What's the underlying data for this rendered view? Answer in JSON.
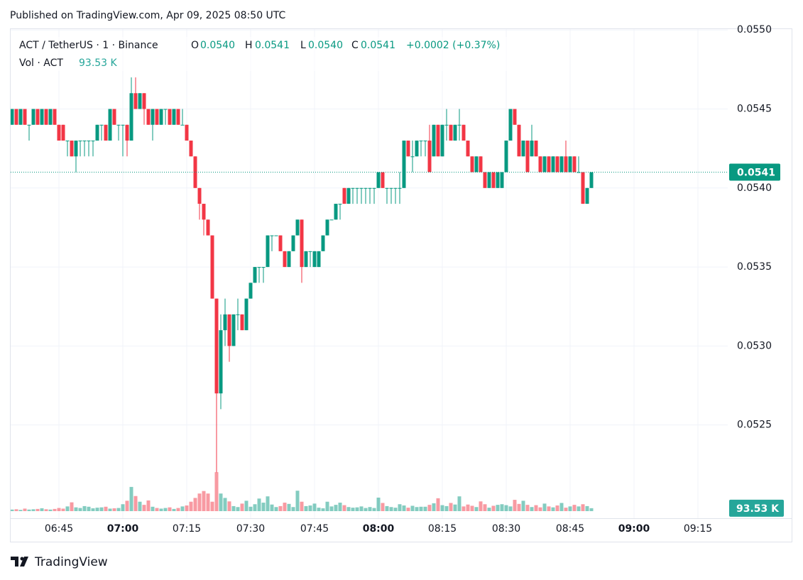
{
  "chart_data": {
    "type": "candlestick",
    "published": "Published on TradingView.com, Apr 09, 2025 08:50 UTC",
    "symbol": "ACT / TetherUS · 1 · Binance",
    "ohlc_letters": [
      "O",
      "H",
      "L",
      "C"
    ],
    "ohlc_labels": [
      "0.0540",
      "0.0541",
      "0.0540",
      "0.0541"
    ],
    "change": "+0.0002 (+0.37%)",
    "volume_title": "Vol · ACT",
    "brand": "TradingView",
    "up_color": "#089981",
    "down_color": "#f23645",
    "grid": true,
    "x": [
      "06:34",
      "06:35",
      "06:36",
      "06:37",
      "06:38",
      "06:39",
      "06:40",
      "06:41",
      "06:42",
      "06:43",
      "06:44",
      "06:45",
      "06:46",
      "06:47",
      "06:48",
      "06:49",
      "06:50",
      "06:51",
      "06:52",
      "06:53",
      "06:54",
      "06:55",
      "06:56",
      "06:57",
      "06:58",
      "06:59",
      "07:00",
      "07:01",
      "07:02",
      "07:03",
      "07:04",
      "07:05",
      "07:06",
      "07:07",
      "07:08",
      "07:09",
      "07:10",
      "07:11",
      "07:12",
      "07:13",
      "07:14",
      "07:15",
      "07:16",
      "07:17",
      "07:18",
      "07:19",
      "07:20",
      "07:21",
      "07:22",
      "07:23",
      "07:24",
      "07:25",
      "07:26",
      "07:27",
      "07:28",
      "07:29",
      "07:30",
      "07:31",
      "07:32",
      "07:33",
      "07:34",
      "07:35",
      "07:36",
      "07:37",
      "07:38",
      "07:39",
      "07:40",
      "07:41",
      "07:42",
      "07:43",
      "07:44",
      "07:45",
      "07:46",
      "07:47",
      "07:48",
      "07:49",
      "07:50",
      "07:51",
      "07:52",
      "07:53",
      "07:54",
      "07:55",
      "07:56",
      "07:57",
      "07:58",
      "07:59",
      "08:00",
      "08:01",
      "08:02",
      "08:03",
      "08:04",
      "08:05",
      "08:06",
      "08:07",
      "08:08",
      "08:09",
      "08:10",
      "08:11",
      "08:12",
      "08:13",
      "08:14",
      "08:15",
      "08:16",
      "08:17",
      "08:18",
      "08:19",
      "08:20",
      "08:21",
      "08:22",
      "08:23",
      "08:24",
      "08:25",
      "08:26",
      "08:27",
      "08:28",
      "08:29",
      "08:30",
      "08:31",
      "08:32",
      "08:33",
      "08:34",
      "08:35",
      "08:36",
      "08:37",
      "08:38",
      "08:39",
      "08:40",
      "08:41",
      "08:42",
      "08:43",
      "08:44",
      "08:45",
      "08:46",
      "08:47",
      "08:48",
      "08:49",
      "08:50"
    ],
    "open": [
      0.0544,
      0.0545,
      0.0544,
      0.0545,
      0.0544,
      0.0544,
      0.0545,
      0.0544,
      0.0545,
      0.0544,
      0.0545,
      0.0544,
      0.0544,
      0.0543,
      0.0543,
      0.0542,
      0.0543,
      0.0543,
      0.0543,
      0.0543,
      0.0543,
      0.0544,
      0.0544,
      0.0543,
      0.0545,
      0.0544,
      0.0544,
      0.0544,
      0.0543,
      0.0546,
      0.0545,
      0.0546,
      0.0545,
      0.0544,
      0.0545,
      0.0544,
      0.0545,
      0.0545,
      0.0544,
      0.0545,
      0.0544,
      0.0544,
      0.0543,
      0.0542,
      0.054,
      0.0539,
      0.0538,
      0.0537,
      0.0533,
      0.0527,
      0.0531,
      0.0532,
      0.053,
      0.0532,
      0.0532,
      0.0531,
      0.0533,
      0.0534,
      0.0535,
      0.0535,
      0.0535,
      0.0537,
      0.0537,
      0.0537,
      0.0536,
      0.0535,
      0.0536,
      0.0537,
      0.0538,
      0.0535,
      0.0536,
      0.0535,
      0.0535,
      0.0536,
      0.0537,
      0.0538,
      0.0538,
      0.0539,
      0.054,
      0.0539,
      0.054,
      0.054,
      0.054,
      0.054,
      0.054,
      0.054,
      0.054,
      0.0541,
      0.054,
      0.054,
      0.054,
      0.054,
      0.054,
      0.0543,
      0.0542,
      0.0542,
      0.0543,
      0.0543,
      0.0543,
      0.0542,
      0.0544,
      0.0542,
      0.0544,
      0.0544,
      0.0543,
      0.0544,
      0.0544,
      0.0543,
      0.0542,
      0.0541,
      0.0542,
      0.0541,
      0.054,
      0.0541,
      0.054,
      0.054,
      0.0541,
      0.0543,
      0.0545,
      0.0544,
      0.0542,
      0.0543,
      0.0542,
      0.0543,
      0.0542,
      0.0541,
      0.0542,
      0.0541,
      0.0542,
      0.0541,
      0.0542,
      0.0541,
      0.0542,
      0.0541,
      0.0541,
      0.0539,
      0.054
    ],
    "high": [
      0.0545,
      0.0545,
      0.0545,
      0.0545,
      0.0544,
      0.0545,
      0.0545,
      0.0545,
      0.0545,
      0.0545,
      0.0545,
      0.0544,
      0.0544,
      0.0543,
      0.0543,
      0.0543,
      0.0543,
      0.0543,
      0.0543,
      0.0543,
      0.0544,
      0.0544,
      0.0544,
      0.0545,
      0.0545,
      0.0544,
      0.0544,
      0.0544,
      0.0547,
      0.0547,
      0.0546,
      0.0546,
      0.0545,
      0.0545,
      0.0545,
      0.0545,
      0.0545,
      0.0545,
      0.0545,
      0.0545,
      0.0545,
      0.0544,
      0.0543,
      0.0542,
      0.054,
      0.0539,
      0.0538,
      0.0537,
      0.0533,
      0.0532,
      0.0533,
      0.0532,
      0.0532,
      0.0533,
      0.0532,
      0.0533,
      0.0534,
      0.0535,
      0.0535,
      0.0535,
      0.0537,
      0.0537,
      0.0537,
      0.0537,
      0.0536,
      0.0536,
      0.0537,
      0.0538,
      0.0538,
      0.0536,
      0.0536,
      0.0536,
      0.0536,
      0.0537,
      0.0538,
      0.0538,
      0.0539,
      0.0539,
      0.054,
      0.054,
      0.054,
      0.054,
      0.054,
      0.054,
      0.054,
      0.054,
      0.0541,
      0.0541,
      0.054,
      0.054,
      0.054,
      0.0541,
      0.0543,
      0.0543,
      0.0543,
      0.0543,
      0.0543,
      0.0543,
      0.0544,
      0.0544,
      0.0544,
      0.0544,
      0.0545,
      0.0544,
      0.0544,
      0.0545,
      0.0544,
      0.0543,
      0.0542,
      0.0542,
      0.0542,
      0.0541,
      0.0541,
      0.0541,
      0.0541,
      0.0541,
      0.0543,
      0.0545,
      0.0545,
      0.0544,
      0.0543,
      0.0543,
      0.0544,
      0.0543,
      0.0542,
      0.0542,
      0.0542,
      0.0542,
      0.0542,
      0.0542,
      0.0543,
      0.0542,
      0.0542,
      0.0542,
      0.0541,
      0.054,
      0.0541
    ],
    "low": [
      0.0544,
      0.0544,
      0.0544,
      0.0544,
      0.0543,
      0.0544,
      0.0544,
      0.0544,
      0.0544,
      0.0544,
      0.0544,
      0.0543,
      0.0543,
      0.0542,
      0.0542,
      0.0541,
      0.0542,
      0.0542,
      0.0542,
      0.0542,
      0.0543,
      0.0543,
      0.0543,
      0.0543,
      0.0544,
      0.0543,
      0.0542,
      0.0542,
      0.0543,
      0.0545,
      0.0545,
      0.0544,
      0.0544,
      0.0543,
      0.0544,
      0.0544,
      0.0544,
      0.0544,
      0.0544,
      0.0544,
      0.0544,
      0.0543,
      0.0542,
      0.054,
      0.0538,
      0.0537,
      0.0537,
      0.0533,
      0.0522,
      0.0526,
      0.053,
      0.0529,
      0.053,
      0.0531,
      0.0531,
      0.0531,
      0.0533,
      0.0534,
      0.0534,
      0.0534,
      0.0535,
      0.0536,
      0.0537,
      0.0536,
      0.0535,
      0.0535,
      0.0536,
      0.0537,
      0.0534,
      0.0535,
      0.0535,
      0.0535,
      0.0535,
      0.0536,
      0.0537,
      0.0538,
      0.0538,
      0.0538,
      0.0539,
      0.0539,
      0.0539,
      0.0539,
      0.0539,
      0.0539,
      0.0539,
      0.0539,
      0.054,
      0.054,
      0.0539,
      0.0539,
      0.0539,
      0.0539,
      0.054,
      0.0542,
      0.0541,
      0.0542,
      0.0542,
      0.0542,
      0.0541,
      0.0542,
      0.0542,
      0.0542,
      0.0543,
      0.0543,
      0.0543,
      0.0543,
      0.0543,
      0.0542,
      0.0541,
      0.0541,
      0.0541,
      0.054,
      0.054,
      0.054,
      0.054,
      0.054,
      0.0541,
      0.0543,
      0.0544,
      0.0542,
      0.0542,
      0.0541,
      0.0542,
      0.0542,
      0.0541,
      0.0541,
      0.0541,
      0.0541,
      0.0541,
      0.0541,
      0.0541,
      0.0541,
      0.0541,
      0.0541,
      0.0539,
      0.0539,
      0.054
    ],
    "close": [
      0.0545,
      0.0544,
      0.0545,
      0.0544,
      0.0544,
      0.0545,
      0.0544,
      0.0545,
      0.0544,
      0.0545,
      0.0544,
      0.0543,
      0.0543,
      0.0543,
      0.0542,
      0.0543,
      0.0543,
      0.0543,
      0.0543,
      0.0543,
      0.0544,
      0.0544,
      0.0543,
      0.0545,
      0.0544,
      0.0544,
      0.0544,
      0.0543,
      0.0546,
      0.0545,
      0.0546,
      0.0545,
      0.0544,
      0.0545,
      0.0544,
      0.0545,
      0.0545,
      0.0544,
      0.0545,
      0.0544,
      0.0544,
      0.0543,
      0.0542,
      0.054,
      0.0539,
      0.0538,
      0.0537,
      0.0533,
      0.0527,
      0.0531,
      0.0532,
      0.053,
      0.0532,
      0.0532,
      0.0531,
      0.0533,
      0.0534,
      0.0535,
      0.0535,
      0.0535,
      0.0537,
      0.0537,
      0.0537,
      0.0536,
      0.0535,
      0.0536,
      0.0537,
      0.0538,
      0.0535,
      0.0536,
      0.0536,
      0.0536,
      0.0536,
      0.0537,
      0.0538,
      0.0538,
      0.0539,
      0.0539,
      0.0539,
      0.054,
      0.054,
      0.054,
      0.054,
      0.054,
      0.054,
      0.054,
      0.0541,
      0.054,
      0.054,
      0.054,
      0.054,
      0.054,
      0.0543,
      0.0542,
      0.0542,
      0.0543,
      0.0543,
      0.0543,
      0.0541,
      0.0544,
      0.0542,
      0.0544,
      0.0544,
      0.0543,
      0.0544,
      0.0544,
      0.0543,
      0.0542,
      0.0541,
      0.0542,
      0.0541,
      0.054,
      0.0541,
      0.054,
      0.0541,
      0.0541,
      0.0543,
      0.0545,
      0.0544,
      0.0542,
      0.0543,
      0.0541,
      0.0543,
      0.0542,
      0.0541,
      0.0542,
      0.0541,
      0.0542,
      0.0541,
      0.0542,
      0.0541,
      0.0542,
      0.0541,
      0.0541,
      0.0539,
      0.054,
      0.0541
    ],
    "volume": [
      50000,
      60000,
      40000,
      80000,
      50000,
      60000,
      70000,
      90000,
      60000,
      50000,
      70000,
      100000,
      80000,
      150000,
      280000,
      120000,
      100000,
      160000,
      140000,
      90000,
      110000,
      120000,
      140000,
      80000,
      90000,
      100000,
      220000,
      330000,
      770000,
      480000,
      300000,
      200000,
      340000,
      140000,
      100000,
      80000,
      100000,
      120000,
      70000,
      100000,
      150000,
      180000,
      300000,
      420000,
      560000,
      640000,
      560000,
      300000,
      1240000,
      560000,
      420000,
      310000,
      160000,
      130000,
      240000,
      330000,
      140000,
      220000,
      400000,
      270000,
      470000,
      210000,
      130000,
      160000,
      270000,
      230000,
      130000,
      650000,
      300000,
      160000,
      180000,
      240000,
      110000,
      90000,
      300000,
      150000,
      200000,
      270000,
      190000,
      130000,
      110000,
      120000,
      150000,
      100000,
      130000,
      100000,
      430000,
      260000,
      160000,
      130000,
      110000,
      220000,
      180000,
      110000,
      170000,
      130000,
      140000,
      140000,
      200000,
      250000,
      410000,
      190000,
      160000,
      260000,
      210000,
      470000,
      150000,
      210000,
      170000,
      130000,
      310000,
      220000,
      110000,
      170000,
      200000,
      220000,
      190000,
      150000,
      360000,
      230000,
      330000,
      200000,
      130000,
      190000,
      120000,
      240000,
      150000,
      120000,
      180000,
      260000,
      110000,
      150000,
      200000,
      150000,
      220000,
      160000,
      93530
    ],
    "last_price": {
      "value": 0.0541,
      "label": "0.0541"
    },
    "last_volume": {
      "value": 93530,
      "label": "93.53 K"
    },
    "xlim": [
      "06:33",
      "09:21"
    ],
    "xticks": [
      "06:45",
      "07:00",
      "07:15",
      "07:30",
      "07:45",
      "08:00",
      "08:15",
      "08:30",
      "08:45",
      "09:00",
      "09:15"
    ],
    "ylim": [
      0.05191,
      0.05501
    ],
    "yticks": [
      {
        "value": 0.0525,
        "label": "0.0525"
      },
      {
        "value": 0.053,
        "label": "0.0530"
      },
      {
        "value": 0.0535,
        "label": "0.0535"
      },
      {
        "value": 0.054,
        "label": "0.0540"
      },
      {
        "value": 0.0545,
        "label": "0.0545"
      },
      {
        "value": 0.055,
        "label": "0.0550"
      }
    ],
    "vlim": [
      0,
      1400000
    ]
  }
}
